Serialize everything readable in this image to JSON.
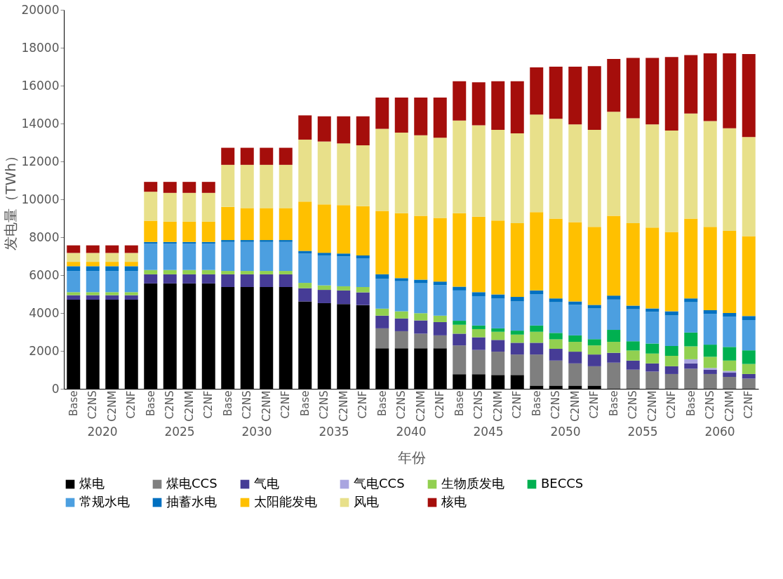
{
  "chart_data": {
    "type": "bar",
    "stacked": true,
    "xlabel": "年份",
    "ylabel": "发电量（TWh）",
    "categories": [
      "Base",
      "C2NS",
      "C2NM",
      "C2NF",
      "Base",
      "C2NS",
      "C2NM",
      "C2NF",
      "Base",
      "C2NS",
      "C2NM",
      "C2NF",
      "Base",
      "C2NS",
      "C2NM",
      "C2NF",
      "Base",
      "C2NS",
      "C2NM",
      "C2NF",
      "Base",
      "C2NS",
      "C2NM",
      "C2NF",
      "Base",
      "C2NS",
      "C2NM",
      "C2NF",
      "Base",
      "C2NS",
      "C2NM",
      "C2NF",
      "Base",
      "C2NS",
      "C2NM",
      "C2NF"
    ],
    "annotations": [
      "2020",
      "2025",
      "2030",
      "2035",
      "2040",
      "2045",
      "2050",
      "2055",
      "2060"
    ],
    "ylim": [
      0,
      20000
    ],
    "yticks": [
      0,
      2000,
      4000,
      6000,
      8000,
      10000,
      12000,
      14000,
      16000,
      18000,
      20000
    ],
    "grid": false,
    "legend": "bottom",
    "series": [
      {
        "name": "煤电",
        "color": "#000000",
        "values": [
          4700,
          4700,
          4700,
          4700,
          5560,
          5560,
          5560,
          5560,
          5370,
          5370,
          5370,
          5370,
          4610,
          4520,
          4470,
          4420,
          2140,
          2140,
          2140,
          2140,
          770,
          770,
          730,
          730,
          170,
          170,
          170,
          170,
          0,
          0,
          0,
          0,
          0,
          0,
          0,
          0
        ]
      },
      {
        "name": "煤电CCS",
        "color": "#7f7f7f",
        "values": [
          0,
          0,
          0,
          0,
          0,
          0,
          0,
          0,
          0,
          0,
          0,
          0,
          0,
          0,
          0,
          0,
          1050,
          900,
          770,
          680,
          1520,
          1280,
          1230,
          1080,
          1640,
          1320,
          1170,
          1020,
          1380,
          1010,
          910,
          780,
          1060,
          780,
          630,
          540
        ]
      },
      {
        "name": "气电",
        "color": "#463c96",
        "values": [
          240,
          240,
          240,
          240,
          480,
          480,
          480,
          480,
          670,
          670,
          670,
          670,
          700,
          700,
          720,
          670,
          670,
          670,
          700,
          700,
          620,
          670,
          620,
          620,
          620,
          620,
          620,
          620,
          520,
          480,
          430,
          410,
          280,
          230,
          220,
          240
        ]
      },
      {
        "name": "气电CCS",
        "color": "#a9a5e0",
        "values": [
          0,
          0,
          0,
          0,
          0,
          0,
          0,
          0,
          0,
          0,
          0,
          0,
          0,
          0,
          0,
          0,
          0,
          0,
          0,
          0,
          0,
          0,
          0,
          0,
          0,
          0,
          0,
          0,
          0,
          0,
          0,
          0,
          220,
          90,
          90,
          null
        ]
      },
      {
        "name": "生物质发电",
        "color": "#92d050",
        "values": [
          160,
          160,
          160,
          160,
          230,
          230,
          230,
          230,
          180,
          180,
          180,
          180,
          280,
          240,
          220,
          280,
          370,
          380,
          380,
          340,
          470,
          430,
          430,
          430,
          580,
          500,
          520,
          480,
          580,
          530,
          520,
          550,
          680,
          590,
          550,
          530
        ]
      },
      {
        "name": "BECCS",
        "color": "#00b050",
        "values": [
          0,
          0,
          0,
          0,
          0,
          0,
          0,
          0,
          0,
          0,
          0,
          0,
          0,
          0,
          0,
          0,
          0,
          0,
          0,
          0,
          210,
          190,
          180,
          210,
          330,
          340,
          340,
          330,
          630,
          490,
          530,
          520,
          730,
          640,
          720,
          720
        ]
      },
      {
        "name": "常规水电",
        "color": "#4c9fe0",
        "values": [
          1120,
          1120,
          1120,
          1120,
          1390,
          1390,
          1390,
          1390,
          1530,
          1530,
          1530,
          1530,
          1550,
          1580,
          1580,
          1520,
          1570,
          1590,
          1580,
          1610,
          1600,
          1550,
          1570,
          1540,
          1660,
          1620,
          1610,
          1620,
          1600,
          1690,
          1670,
          1610,
          1600,
          1630,
          1600,
          1600
        ]
      },
      {
        "name": "抽蓄水电",
        "color": "#0070c0",
        "values": [
          250,
          250,
          250,
          250,
          90,
          90,
          90,
          90,
          100,
          100,
          100,
          100,
          140,
          140,
          150,
          150,
          250,
          160,
          190,
          190,
          200,
          210,
          220,
          240,
          190,
          200,
          180,
          190,
          210,
          190,
          180,
          220,
          200,
          190,
          190,
          210
        ]
      },
      {
        "name": "太阳能发电",
        "color": "#ffc000",
        "values": [
          230,
          230,
          230,
          230,
          1120,
          1070,
          1070,
          1070,
          1750,
          1690,
          1690,
          1690,
          2600,
          2550,
          2550,
          2600,
          3340,
          3430,
          3370,
          3360,
          3880,
          3980,
          3900,
          3890,
          4130,
          4210,
          4190,
          4120,
          4210,
          4350,
          4270,
          4190,
          4210,
          4400,
          4330,
          4220
        ]
      },
      {
        "name": "风电",
        "color": "#e8e08a",
        "values": [
          470,
          470,
          470,
          470,
          1530,
          1520,
          1520,
          1520,
          2220,
          2280,
          2280,
          2280,
          3270,
          3320,
          3260,
          3210,
          4330,
          4250,
          4250,
          4230,
          4890,
          4830,
          4790,
          4740,
          5150,
          5270,
          5150,
          5120,
          5490,
          5540,
          5440,
          5350,
          5550,
          5580,
          5420,
          5230
        ]
      },
      {
        "name": "核电",
        "color": "#a50e0b",
        "values": [
          400,
          400,
          400,
          400,
          520,
          580,
          580,
          580,
          900,
          900,
          900,
          900,
          1280,
          1330,
          1430,
          1530,
          1650,
          1850,
          1990,
          2120,
          2070,
          2270,
          2560,
          2750,
          2490,
          2750,
          3050,
          3360,
          2790,
          3180,
          3510,
          3880,
          3080,
          3570,
          3950,
          4380
        ]
      }
    ]
  }
}
